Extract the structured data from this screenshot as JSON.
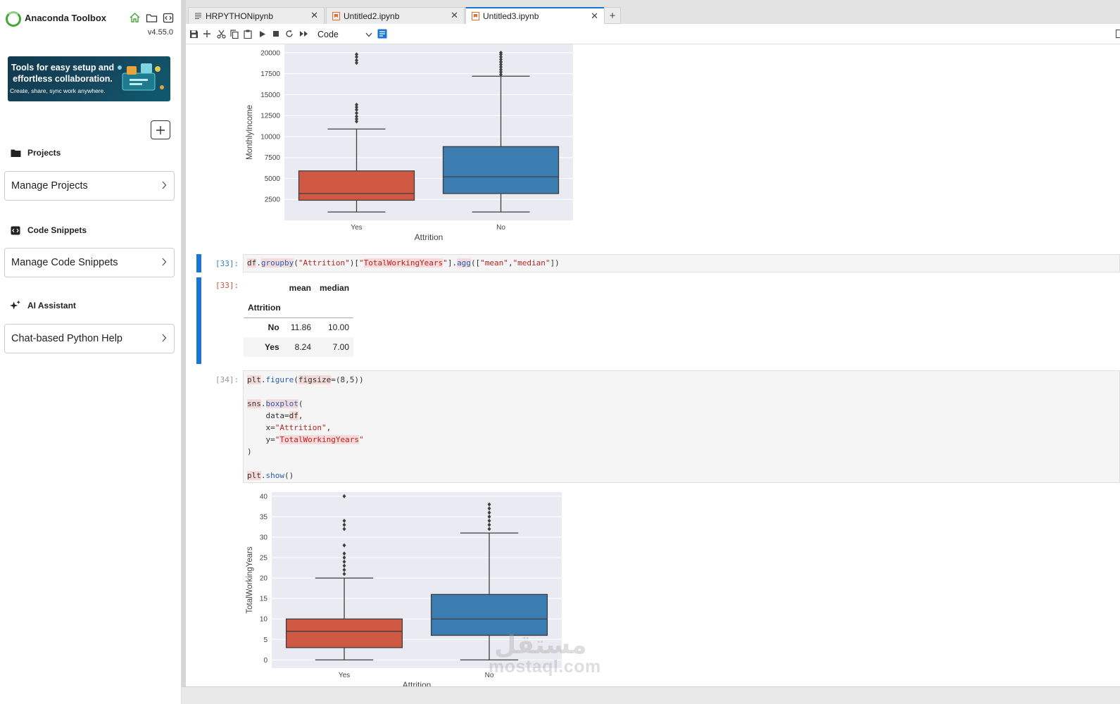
{
  "sidebar": {
    "app_title": "Anaconda Toolbox",
    "version": "v4.55.0",
    "banner": {
      "line1": "Tools for easy setup and effortless collaboration.",
      "line2": "Create, share, sync work anywhere."
    },
    "sections": {
      "projects": {
        "title": "Projects",
        "button": "Manage Projects"
      },
      "snippets": {
        "title": "Code Snippets",
        "button": "Manage Code Snippets"
      },
      "ai": {
        "title": "AI Assistant",
        "button": "Chat-based Python Help"
      }
    }
  },
  "tabs": [
    {
      "label": "HRPYTHONipynb"
    },
    {
      "label": "Untitled2.ipynb"
    },
    {
      "label": "Untitled3.ipynb"
    }
  ],
  "toolbar": {
    "cell_type": "Code"
  },
  "cells": {
    "c33_in_prompt": "[33]:",
    "c33_out_prompt": "[33]:",
    "c34_in_prompt": "[34]:",
    "c33_code": "df.groupby(\"Attrition\")[\"TotalWorkingYears\"].agg([\"mean\",\"median\"])",
    "c34_code": [
      "plt.figure(figsize=(8,5))",
      "",
      "sns.boxplot(",
      "    data=df,",
      "    x=\"Attrition\",",
      "    y=\"TotalWorkingYears\"",
      ")",
      "",
      "plt.show()"
    ]
  },
  "dataframe": {
    "columns": [
      "mean",
      "median"
    ],
    "index_name": "Attrition",
    "rows": [
      {
        "index": "No",
        "mean": "11.86",
        "median": "10.00"
      },
      {
        "index": "Yes",
        "mean": "8.24",
        "median": "7.00"
      }
    ]
  },
  "watermark": {
    "latin": "mostaql.com",
    "arabic": "مستقل"
  },
  "chart_data": [
    {
      "type": "box",
      "xlabel": "Attrition",
      "ylabel": "MonthlyIncome",
      "categories": [
        "Yes",
        "No"
      ],
      "yticks": [
        2500,
        5000,
        7500,
        10000,
        12500,
        15000,
        17500,
        20000
      ],
      "ylim": [
        0,
        21000
      ],
      "colors": [
        "#d05944",
        "#3b7cb1"
      ],
      "series": [
        {
          "category": "Yes",
          "min": 1000,
          "q1": 2400,
          "median": 3200,
          "q3": 5900,
          "max": 10900,
          "outliers": [
            11800,
            12100,
            12400,
            12800,
            13200,
            13500,
            13800,
            18800,
            19100,
            19500,
            19800
          ]
        },
        {
          "category": "No",
          "min": 1000,
          "q1": 3200,
          "median": 5200,
          "q3": 8800,
          "max": 17200,
          "outliers": [
            17400,
            17700,
            18000,
            18300,
            18600,
            18900,
            19200,
            19500,
            19800,
            20000
          ]
        }
      ]
    },
    {
      "type": "box",
      "xlabel": "Attrition",
      "ylabel": "TotalWorkingYears",
      "categories": [
        "Yes",
        "No"
      ],
      "yticks": [
        0,
        5,
        10,
        15,
        20,
        25,
        30,
        35,
        40
      ],
      "ylim": [
        -2,
        41
      ],
      "colors": [
        "#d05944",
        "#3b7cb1"
      ],
      "series": [
        {
          "category": "Yes",
          "min": 0,
          "q1": 3,
          "median": 7,
          "q3": 10,
          "max": 20,
          "outliers": [
            21,
            22,
            23,
            24,
            25,
            26,
            28,
            32,
            33,
            34,
            40
          ]
        },
        {
          "category": "No",
          "min": 0,
          "q1": 6,
          "median": 10,
          "q3": 16,
          "max": 31,
          "outliers": [
            32,
            33,
            34,
            35,
            36,
            37,
            38
          ]
        }
      ]
    }
  ]
}
